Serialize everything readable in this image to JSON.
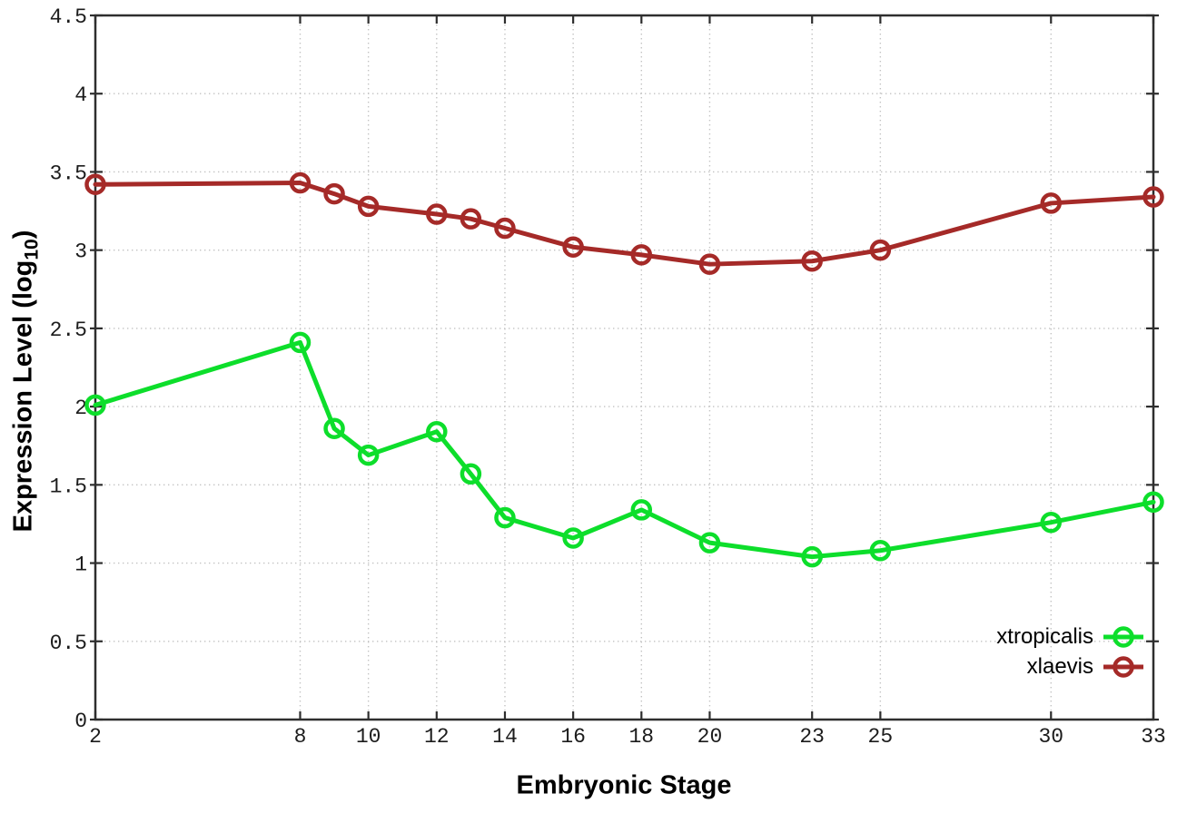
{
  "figure": {
    "title": "",
    "xlabel": "Embryonic Stage",
    "ylabel_prefix": "Expression Level (log",
    "ylabel_sub": "10",
    "ylabel_suffix": ")"
  },
  "chart_data": {
    "type": "line",
    "title": "",
    "xlabel": "Embryonic Stage",
    "ylabel": "Expression Level (log10)",
    "x": [
      2,
      8,
      9,
      10,
      12,
      13,
      14,
      16,
      18,
      20,
      23,
      25,
      30,
      33
    ],
    "series": [
      {
        "name": "xtropicalis",
        "color": "#0dde2b",
        "marker": "open-circle",
        "values": [
          2.01,
          2.41,
          1.86,
          1.69,
          1.84,
          1.57,
          1.29,
          1.16,
          1.34,
          1.13,
          1.04,
          1.08,
          1.26,
          1.39
        ]
      },
      {
        "name": "xlaevis",
        "color": "#a52a28",
        "marker": "open-circle",
        "values": [
          3.42,
          3.43,
          3.36,
          3.28,
          3.23,
          3.2,
          3.14,
          3.02,
          2.97,
          2.91,
          2.93,
          3.0,
          3.3,
          3.34
        ]
      }
    ],
    "xlim": [
      2,
      33
    ],
    "ylim": [
      0,
      4.5
    ],
    "xticks": [
      2,
      8,
      10,
      12,
      14,
      16,
      18,
      20,
      23,
      25,
      30,
      33
    ],
    "yticks": [
      0,
      0.5,
      1,
      1.5,
      2,
      2.5,
      3,
      3.5,
      4,
      4.5
    ],
    "grid": true,
    "grid_style": "dotted",
    "legend_position": "right-lower-inside",
    "legend_entries": [
      "xtropicalis",
      "xlaevis"
    ]
  },
  "style": {
    "background": "#ffffff",
    "border_color": "#2e2e2e",
    "grid_color": "#c2c2c2",
    "tick_label_color": "#1c1c1c",
    "green_series": "#0dde2b",
    "red_series": "#a52a28"
  }
}
